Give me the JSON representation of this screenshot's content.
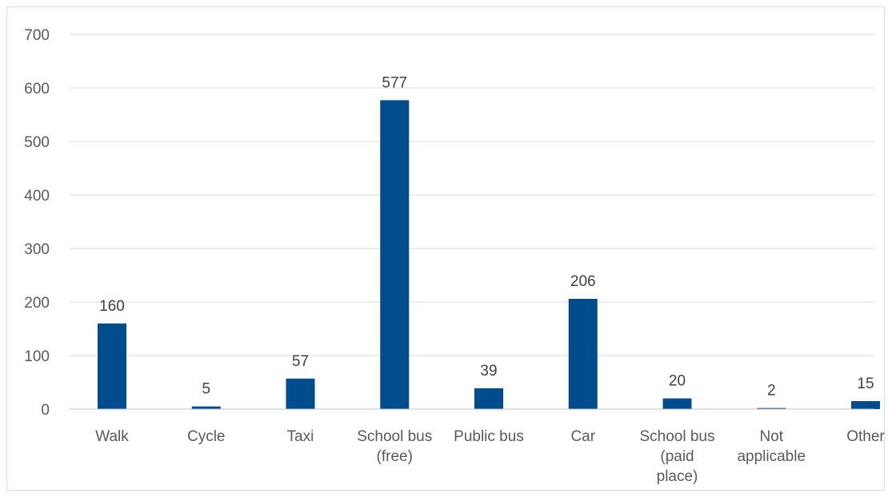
{
  "chart_data": {
    "type": "bar",
    "title": "",
    "xlabel": "",
    "ylabel": "",
    "categories": [
      [
        "Walk"
      ],
      [
        "Cycle"
      ],
      [
        "Taxi"
      ],
      [
        "School bus",
        "(free)"
      ],
      [
        "Public bus"
      ],
      [
        "Car"
      ],
      [
        "School bus",
        "(paid",
        "place)"
      ],
      [
        "Not",
        "applicable"
      ],
      [
        "Other"
      ]
    ],
    "values": [
      160,
      5,
      57,
      577,
      39,
      206,
      20,
      2,
      15
    ],
    "ylim": [
      0,
      700
    ],
    "yticks": [
      0,
      100,
      200,
      300,
      400,
      500,
      600,
      700
    ],
    "grid": true,
    "legend": "none",
    "bar_color": "#004C8C",
    "grid_color": "#d9d9d9",
    "axis_color": "#bfbfbf"
  }
}
